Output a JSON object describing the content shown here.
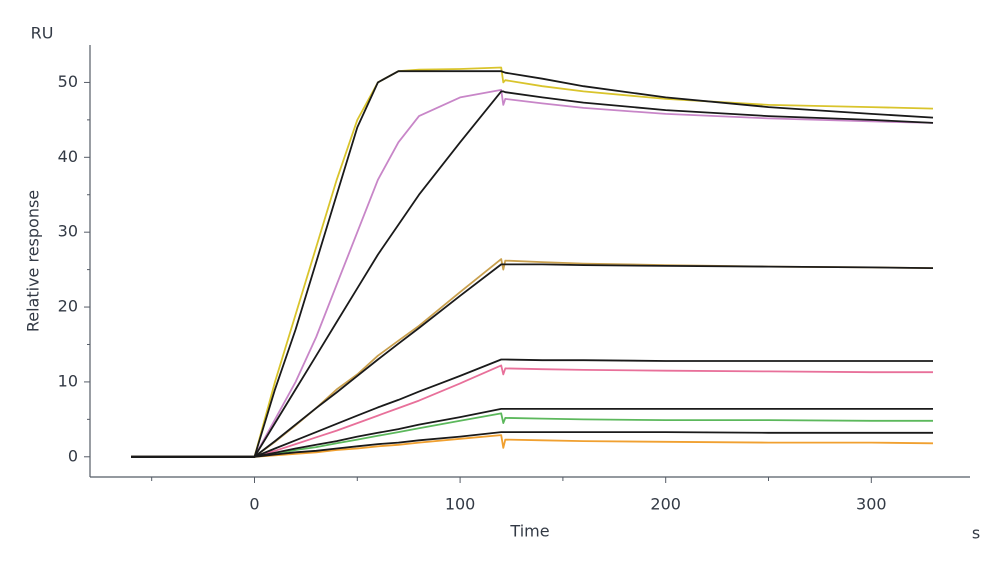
{
  "chart_data": {
    "type": "line",
    "y_unit": "RU",
    "y_label": "Relative response",
    "x_label": "Time",
    "x_unit": "s",
    "x": [
      -60,
      0,
      10,
      20,
      30,
      40,
      50,
      60,
      70,
      80,
      100,
      120,
      121,
      122,
      140,
      160,
      200,
      250,
      300,
      330
    ],
    "xlim": [
      -80,
      348
    ],
    "ylim": [
      -2.7,
      55
    ],
    "xticks": [
      0,
      100,
      200,
      300
    ],
    "xminorticks": [
      -50,
      50,
      150,
      250
    ],
    "yticks": [
      0,
      10,
      20,
      30,
      40,
      50
    ],
    "yminorticks": [
      5,
      15,
      25,
      35,
      45
    ],
    "series": [
      {
        "color": "#d9c42c",
        "values": [
          0,
          0,
          10,
          19,
          28,
          37,
          45,
          50,
          51.5,
          51.7,
          51.8,
          52,
          50,
          50.3,
          49.5,
          48.8,
          47.8,
          47,
          46.7,
          46.5
        ]
      },
      {
        "color": "#c886c8",
        "values": [
          0,
          0,
          5,
          10,
          16,
          23,
          30,
          37,
          42,
          45.5,
          48,
          49,
          47,
          47.8,
          47.2,
          46.6,
          45.8,
          45.2,
          44.8,
          44.6
        ]
      },
      {
        "color": "#c9a04e",
        "values": [
          0,
          0,
          2,
          4.2,
          6.5,
          9,
          11,
          13.5,
          15.5,
          17.5,
          22,
          26.4,
          25,
          26.2,
          26,
          25.8,
          25.6,
          25.4,
          25.3,
          25.2
        ]
      },
      {
        "color": "#e8709a",
        "values": [
          0,
          0,
          0.8,
          1.7,
          2.6,
          3.5,
          4.5,
          5.5,
          6.5,
          7.5,
          9.8,
          12.2,
          11,
          11.8,
          11.7,
          11.6,
          11.5,
          11.4,
          11.3,
          11.3
        ]
      },
      {
        "color": "#5cb85c",
        "values": [
          0,
          0,
          0.4,
          0.9,
          1.3,
          1.8,
          2.3,
          2.8,
          3.3,
          3.8,
          4.8,
          5.8,
          4.5,
          5.2,
          5.1,
          5,
          4.9,
          4.9,
          4.8,
          4.8
        ]
      },
      {
        "color": "#f0a030",
        "values": [
          0,
          0,
          0.2,
          0.4,
          0.6,
          0.9,
          1.1,
          1.4,
          1.6,
          1.9,
          2.4,
          2.9,
          1.2,
          2.3,
          2.2,
          2.1,
          2,
          1.9,
          1.9,
          1.8
        ]
      },
      {
        "color": "#1a1a1a",
        "values": [
          0,
          0,
          9,
          17,
          26,
          35,
          44,
          50,
          51.5,
          51.5,
          51.5,
          51.5,
          51.4,
          51.3,
          50.5,
          49.5,
          48,
          46.7,
          45.8,
          45.3
        ]
      },
      {
        "color": "#1a1a1a",
        "values": [
          0,
          0,
          4.5,
          9,
          13.5,
          18,
          22.5,
          27,
          31,
          35,
          42,
          48.8,
          48.8,
          48.7,
          48,
          47.3,
          46.3,
          45.5,
          45,
          44.6
        ]
      },
      {
        "color": "#1a1a1a",
        "values": [
          0,
          0,
          2.1,
          4.3,
          6.5,
          8.6,
          10.8,
          13,
          15.1,
          17.2,
          21.5,
          25.7,
          25.7,
          25.7,
          25.7,
          25.6,
          25.5,
          25.4,
          25.3,
          25.2
        ]
      },
      {
        "color": "#1a1a1a",
        "values": [
          0,
          0,
          1.1,
          2.2,
          3.3,
          4.4,
          5.5,
          6.6,
          7.6,
          8.7,
          10.8,
          13,
          13,
          13,
          12.9,
          12.9,
          12.8,
          12.8,
          12.8,
          12.8
        ]
      },
      {
        "color": "#1a1a1a",
        "values": [
          0,
          0,
          0.55,
          1.1,
          1.6,
          2.1,
          2.7,
          3.2,
          3.7,
          4.3,
          5.3,
          6.4,
          6.4,
          6.4,
          6.4,
          6.4,
          6.4,
          6.4,
          6.4,
          6.4
        ]
      },
      {
        "color": "#1a1a1a",
        "values": [
          0,
          0,
          0.3,
          0.6,
          0.8,
          1.1,
          1.4,
          1.7,
          1.9,
          2.2,
          2.7,
          3.3,
          3.3,
          3.3,
          3.3,
          3.3,
          3.3,
          3.2,
          3.2,
          3.2
        ]
      }
    ]
  }
}
